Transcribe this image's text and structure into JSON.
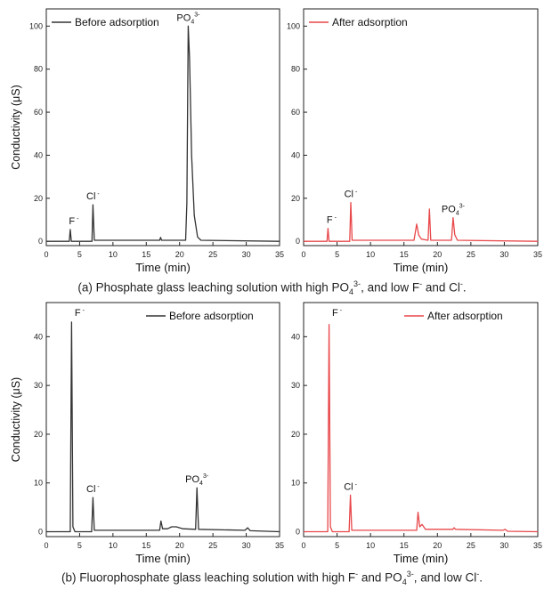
{
  "chart_data": [
    {
      "type": "line",
      "panel": "a-left",
      "xlabel": "Time (min)",
      "ylabel": "Conductivity (μS)",
      "xlim": [
        0,
        35
      ],
      "ylim": [
        -2,
        108
      ],
      "xticks": [
        0,
        5,
        10,
        15,
        20,
        25,
        30,
        35
      ],
      "yticks": [
        0,
        20,
        40,
        60,
        80,
        100
      ],
      "legend": {
        "label": "Before adsorption",
        "placement": "top-left"
      },
      "series": [
        {
          "name": "Before adsorption",
          "color": "#333333",
          "points": [
            [
              0,
              0
            ],
            [
              3.45,
              0
            ],
            [
              3.6,
              5.5
            ],
            [
              3.75,
              0
            ],
            [
              6.85,
              0
            ],
            [
              7.0,
              17
            ],
            [
              7.2,
              0.5
            ],
            [
              17.0,
              0.5
            ],
            [
              17.15,
              1.8
            ],
            [
              17.3,
              0.5
            ],
            [
              20.9,
              0.5
            ],
            [
              21.1,
              18
            ],
            [
              21.3,
              100
            ],
            [
              21.5,
              85
            ],
            [
              21.8,
              40
            ],
            [
              22.2,
              12
            ],
            [
              22.7,
              2
            ],
            [
              23.2,
              0.5
            ],
            [
              35,
              0
            ]
          ]
        }
      ],
      "annotations": [
        {
          "text": "F",
          "sup": "-",
          "x": 3.6,
          "y": 5.5
        },
        {
          "text": "Cl",
          "sup": "-",
          "x": 7.0,
          "y": 17
        },
        {
          "text": "PO",
          "sub": "4",
          "sup": "3-",
          "x": 21.3,
          "y": 100
        }
      ]
    },
    {
      "type": "line",
      "panel": "a-right",
      "xlabel": "Time (min)",
      "ylabel": "",
      "xlim": [
        0,
        35
      ],
      "ylim": [
        -2,
        108
      ],
      "xticks": [
        0,
        5,
        10,
        15,
        20,
        25,
        30,
        35
      ],
      "yticks": [
        0,
        20,
        40,
        60,
        80,
        100
      ],
      "legend": {
        "label": "After adsorption",
        "placement": "top-left"
      },
      "series": [
        {
          "name": "After adsorption",
          "color": "#e8474a",
          "points": [
            [
              0,
              0
            ],
            [
              3.5,
              0
            ],
            [
              3.65,
              6
            ],
            [
              3.8,
              0
            ],
            [
              6.9,
              0
            ],
            [
              7.05,
              18
            ],
            [
              7.25,
              0.5
            ],
            [
              16.5,
              0.5
            ],
            [
              16.9,
              8
            ],
            [
              17.2,
              3
            ],
            [
              17.6,
              1
            ],
            [
              18.6,
              0.5
            ],
            [
              18.8,
              15
            ],
            [
              19.0,
              0.5
            ],
            [
              22.1,
              0.5
            ],
            [
              22.35,
              11
            ],
            [
              22.6,
              3
            ],
            [
              23.0,
              0.5
            ],
            [
              35,
              0
            ]
          ]
        }
      ],
      "annotations": [
        {
          "text": "F",
          "sup": "-",
          "x": 3.65,
          "y": 6
        },
        {
          "text": "Cl",
          "sup": "-",
          "x": 7.05,
          "y": 18
        },
        {
          "text": "PO",
          "sub": "4",
          "sup": "3-",
          "x": 22.35,
          "y": 11
        }
      ]
    },
    {
      "type": "line",
      "panel": "b-left",
      "xlabel": "Time (min)",
      "ylabel": "Conductivity (μS)",
      "xlim": [
        0,
        35
      ],
      "ylim": [
        -1,
        47
      ],
      "xticks": [
        0,
        5,
        10,
        15,
        20,
        25,
        30,
        35
      ],
      "yticks": [
        0,
        10,
        20,
        30,
        40
      ],
      "legend": {
        "label": "Before adsorption",
        "placement": "top-right"
      },
      "series": [
        {
          "name": "Before adsorption",
          "color": "#333333",
          "points": [
            [
              0,
              0
            ],
            [
              3.6,
              0
            ],
            [
              3.8,
              43
            ],
            [
              4.0,
              1
            ],
            [
              4.3,
              0
            ],
            [
              6.8,
              0
            ],
            [
              7.0,
              7
            ],
            [
              7.2,
              0.3
            ],
            [
              17.0,
              0.3
            ],
            [
              17.2,
              2.2
            ],
            [
              17.45,
              0.6
            ],
            [
              18.2,
              0.6
            ],
            [
              18.8,
              1
            ],
            [
              19.5,
              1
            ],
            [
              20.5,
              0.6
            ],
            [
              22.4,
              0.5
            ],
            [
              22.6,
              9
            ],
            [
              22.85,
              0.5
            ],
            [
              29.8,
              0.3
            ],
            [
              30.2,
              0.8
            ],
            [
              30.6,
              0.2
            ],
            [
              35,
              0
            ]
          ]
        }
      ],
      "annotations": [
        {
          "text": "F",
          "sup": "-",
          "x": 3.8,
          "y": 43
        },
        {
          "text": "Cl",
          "sup": "-",
          "x": 7.0,
          "y": 7
        },
        {
          "text": "PO",
          "sub": "4",
          "sup": "3-",
          "x": 22.6,
          "y": 9
        }
      ]
    },
    {
      "type": "line",
      "panel": "b-right",
      "xlabel": "Time (min)",
      "ylabel": "",
      "xlim": [
        0,
        35
      ],
      "ylim": [
        -1,
        47
      ],
      "xticks": [
        0,
        5,
        10,
        15,
        20,
        25,
        30,
        35
      ],
      "yticks": [
        0,
        10,
        20,
        30,
        40
      ],
      "legend": {
        "label": "After adsorption",
        "placement": "top-right"
      },
      "series": [
        {
          "name": "After adsorption",
          "color": "#e8474a",
          "points": [
            [
              0,
              0
            ],
            [
              3.6,
              0
            ],
            [
              3.8,
              42.5
            ],
            [
              4.0,
              1
            ],
            [
              4.3,
              0
            ],
            [
              6.8,
              0
            ],
            [
              7.0,
              7.5
            ],
            [
              7.2,
              0.3
            ],
            [
              16.9,
              0.3
            ],
            [
              17.1,
              4
            ],
            [
              17.35,
              1
            ],
            [
              17.7,
              1.5
            ],
            [
              18.2,
              0.5
            ],
            [
              22.3,
              0.5
            ],
            [
              22.5,
              0.8
            ],
            [
              22.7,
              0.5
            ],
            [
              29.8,
              0.3
            ],
            [
              30.1,
              0.5
            ],
            [
              30.5,
              0.1
            ],
            [
              35,
              0
            ]
          ]
        }
      ],
      "annotations": [
        {
          "text": "F",
          "sup": "-",
          "x": 3.8,
          "y": 42.5
        },
        {
          "text": "Cl",
          "sup": "-",
          "x": 7.0,
          "y": 7.5
        }
      ]
    }
  ],
  "captions": {
    "a": {
      "pre": "(a) Phosphate glass leaching solution with high PO",
      "sub1": "4",
      "sup1": "3-",
      "mid1": ", and low F",
      "sup2": "-",
      "mid2": " and Cl",
      "sup3": "-",
      "end": "."
    },
    "b": {
      "pre": "(b) Fluorophosphate glass leaching solution with high F",
      "sup1": "-",
      "mid1": " and PO",
      "sub1": "4",
      "sup2": "3-",
      "mid2": ", and low Cl",
      "sup3": "-",
      "end": "."
    }
  }
}
